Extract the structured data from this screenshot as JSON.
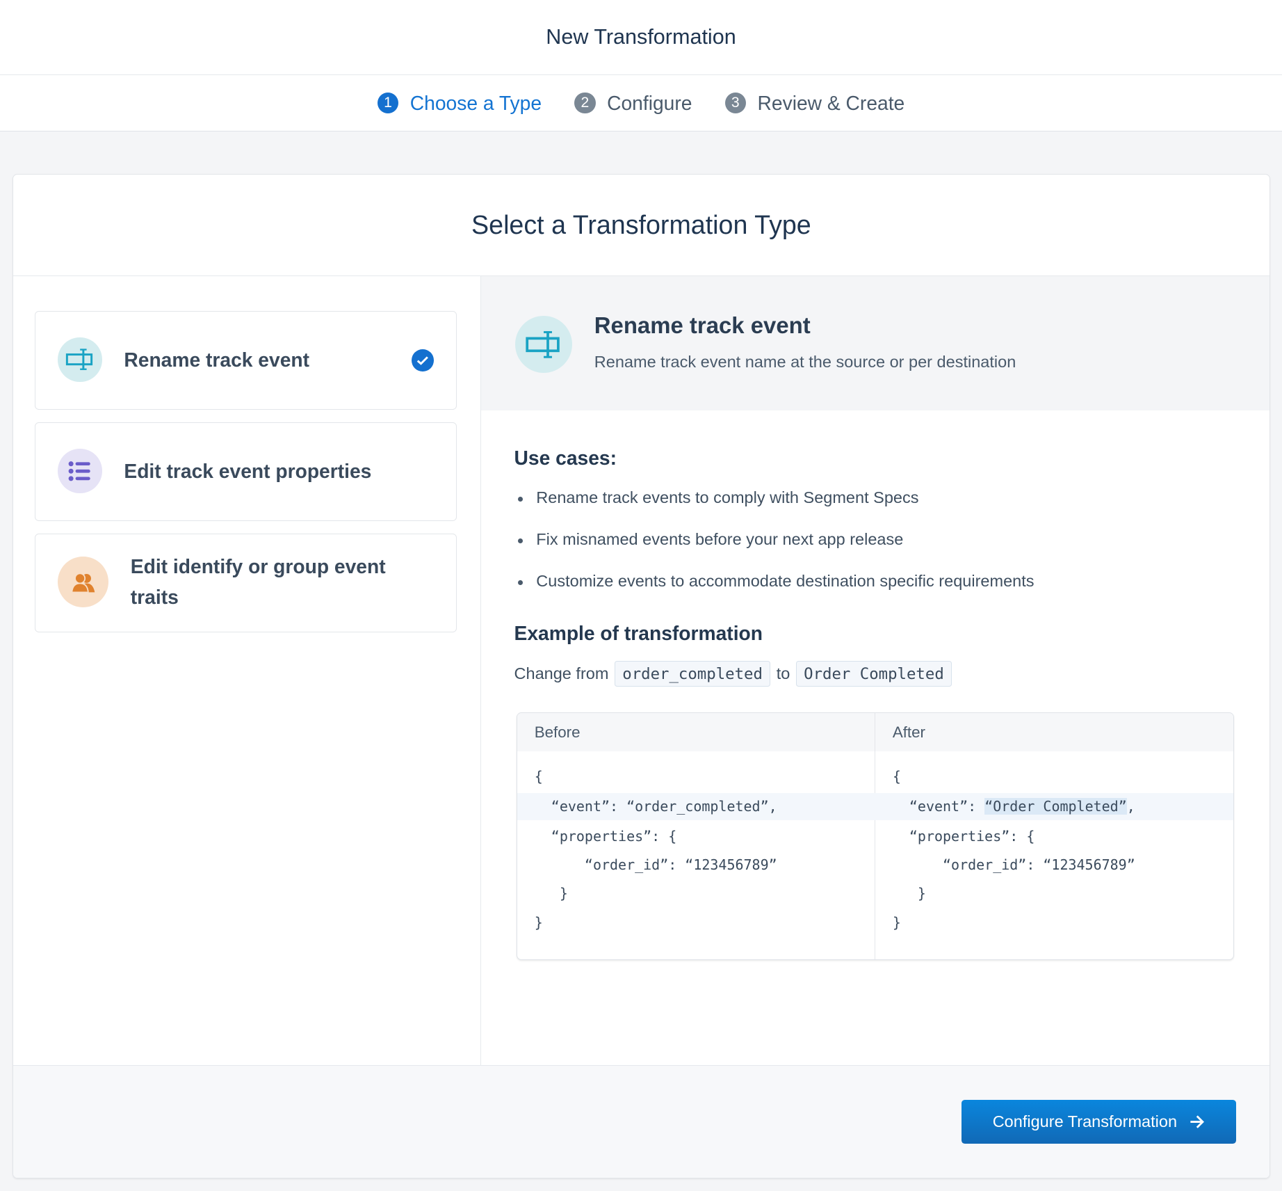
{
  "header": {
    "title": "New Transformation"
  },
  "stepper": {
    "steps": [
      {
        "number": "1",
        "label": "Choose a Type",
        "active": true
      },
      {
        "number": "2",
        "label": "Configure",
        "active": false
      },
      {
        "number": "3",
        "label": "Review & Create",
        "active": false
      }
    ]
  },
  "card": {
    "title": "Select a Transformation Type"
  },
  "types": [
    {
      "label": "Rename track event",
      "icon": "rename-icon",
      "selected": true,
      "color": "#1aa3c4"
    },
    {
      "label": "Edit track event properties",
      "icon": "list-icon",
      "selected": false,
      "color": "#6a5cc9"
    },
    {
      "label": "Edit identify or group event traits",
      "icon": "users-icon",
      "selected": false,
      "color": "#e0822e"
    }
  ],
  "detail": {
    "title": "Rename track event",
    "subtitle": "Rename track event name at the source or per destination",
    "use_cases_heading": "Use cases:",
    "use_cases": [
      "Rename track events to comply with Segment Specs",
      "Fix misnamed events before your next app release",
      "Customize events to accommodate destination specific requirements"
    ],
    "example_heading": "Example of transformation",
    "change_from": "Change from",
    "from_value": "order_completed",
    "to": "to",
    "to_value": "Order Completed",
    "before_label": "Before",
    "after_label": "After",
    "before_lines": [
      "{",
      "  “event”: “order_completed”,",
      "  “properties”: {",
      "      “order_id”: “123456789”",
      "   }",
      "}"
    ],
    "after_lines": [
      "{",
      "  “event”: ",
      "  “properties”: {",
      "      “order_id”: “123456789”",
      "   }",
      "}"
    ],
    "after_highlight": "“Order Completed”",
    "after_highlight_suffix": ","
  },
  "footer": {
    "button_label": "Configure Transformation"
  },
  "colors": {
    "accent": "#1470cf"
  }
}
